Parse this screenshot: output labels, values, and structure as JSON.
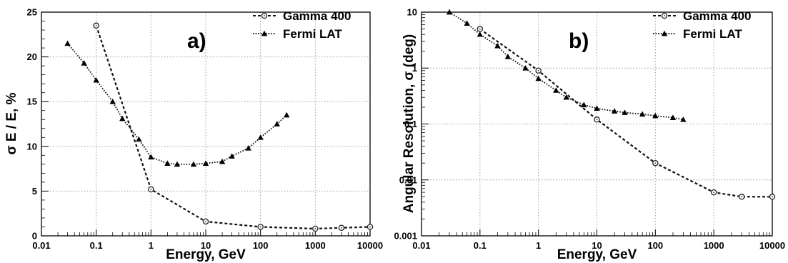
{
  "chart_data": [
    {
      "type": "line",
      "panel_label": "a)",
      "xlabel": "Energy, GeV",
      "ylabel": "σ E / E, %",
      "xscale": "log",
      "yscale": "linear",
      "xlim": [
        0.01,
        10000
      ],
      "ylim": [
        0,
        25
      ],
      "xticks": [
        "0.01",
        "0.1",
        "1",
        "10",
        "100",
        "1000",
        "10000"
      ],
      "yticks": [
        "0",
        "5",
        "10",
        "15",
        "20",
        "25"
      ],
      "grid": true,
      "legend_position": "top-right",
      "series": [
        {
          "name": "Gamma 400",
          "marker": "open-circle",
          "line_style": "dashed",
          "x": [
            0.1,
            1,
            10,
            100,
            1000,
            3000,
            10000
          ],
          "y": [
            23.5,
            5.2,
            1.6,
            1.0,
            0.8,
            0.9,
            1.0
          ]
        },
        {
          "name": "Fermi LAT",
          "marker": "filled-triangle",
          "line_style": "dotted",
          "x": [
            0.03,
            0.06,
            0.1,
            0.2,
            0.3,
            0.6,
            1,
            2,
            3,
            6,
            10,
            20,
            30,
            60,
            100,
            200,
            300
          ],
          "y": [
            21.5,
            19.3,
            17.4,
            15.0,
            13.1,
            10.8,
            8.8,
            8.1,
            8.0,
            8.0,
            8.1,
            8.3,
            8.9,
            9.8,
            11.0,
            12.5,
            13.5
          ]
        }
      ]
    },
    {
      "type": "line",
      "panel_label": "b)",
      "xlabel": "Energy, GeV",
      "ylabel": "Angular Resolution, σ (deg)",
      "xscale": "log",
      "yscale": "log",
      "xlim": [
        0.01,
        10000
      ],
      "ylim": [
        0.001,
        10
      ],
      "xticks": [
        "0.01",
        "0.1",
        "1",
        "10",
        "100",
        "1000",
        "10000"
      ],
      "yticks": [
        "0.001",
        "0.01",
        "0.1",
        "1",
        "10"
      ],
      "grid": true,
      "legend_position": "top-right",
      "series": [
        {
          "name": "Gamma 400",
          "marker": "open-circle",
          "line_style": "dashed",
          "x": [
            0.1,
            1,
            10,
            100,
            1000,
            3000,
            10000
          ],
          "y": [
            5.0,
            0.9,
            0.12,
            0.02,
            0.006,
            0.005,
            0.005
          ]
        },
        {
          "name": "Fermi LAT",
          "marker": "filled-triangle",
          "line_style": "dotted",
          "x": [
            0.03,
            0.06,
            0.1,
            0.2,
            0.3,
            0.6,
            1,
            2,
            3,
            6,
            10,
            20,
            30,
            60,
            100,
            200,
            300
          ],
          "y": [
            10,
            6.3,
            4.0,
            2.5,
            1.6,
            1.0,
            0.65,
            0.4,
            0.3,
            0.22,
            0.19,
            0.17,
            0.16,
            0.15,
            0.14,
            0.13,
            0.12
          ]
        }
      ]
    }
  ]
}
